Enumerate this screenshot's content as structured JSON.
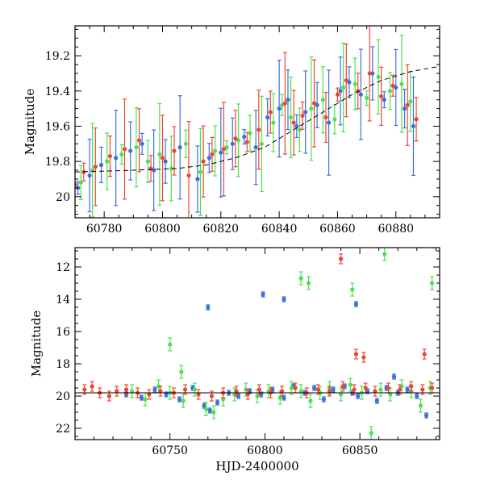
{
  "chart_data": [
    {
      "type": "scatter",
      "panel": "top",
      "title": "",
      "xlabel": "",
      "ylabel": "Magnitude",
      "xlim": [
        60770,
        60895
      ],
      "ylim": [
        20.12,
        19.03
      ],
      "y_inverted": true,
      "xticks": [
        60780,
        60800,
        60820,
        60840,
        60860,
        60880
      ],
      "xtick_labels": [
        "60780",
        "60800",
        "60820",
        "60840",
        "60860",
        "60880"
      ],
      "yticks": [
        19.2,
        19.4,
        19.6,
        19.8,
        20.0
      ],
      "ytick_labels": [
        "19.2",
        "19.4",
        "19.6",
        "19.8",
        "20"
      ],
      "grid": false,
      "legend": "none",
      "model_curve": {
        "color": "#000000",
        "style": "dashed",
        "x": [
          60770,
          60790,
          60805,
          60815,
          60825,
          60835,
          60845,
          60855,
          60865,
          60875,
          60885,
          60895
        ],
        "y": [
          19.86,
          19.85,
          19.84,
          19.82,
          19.78,
          19.72,
          19.62,
          19.52,
          19.42,
          19.34,
          19.29,
          19.26
        ]
      },
      "series": [
        {
          "color": "#3b6fe0",
          "x": [
            60771,
            60775,
            60779,
            60784,
            60789,
            60793,
            60797,
            60801,
            60806,
            60812,
            60816,
            60820,
            60824,
            60828,
            60832,
            60836,
            60840,
            60843,
            60846,
            60849,
            60853,
            60857,
            60861,
            60864,
            60868,
            60872,
            60876,
            60880,
            60883,
            60886
          ],
          "y": [
            19.95,
            19.88,
            19.82,
            19.78,
            19.74,
            19.7,
            19.85,
            19.8,
            19.72,
            19.9,
            19.78,
            19.75,
            19.7,
            19.66,
            19.72,
            19.55,
            19.5,
            19.45,
            19.6,
            19.52,
            19.48,
            19.58,
            19.4,
            19.35,
            19.42,
            19.3,
            19.45,
            19.38,
            19.5,
            19.6
          ]
        },
        {
          "color": "#4fe04f",
          "x": [
            60772,
            60776,
            60781,
            60786,
            60791,
            60795,
            60799,
            60803,
            60808,
            60813,
            60818,
            60822,
            60826,
            60830,
            60834,
            60838,
            60841,
            60844,
            60847,
            60851,
            60855,
            60859,
            60862,
            60866,
            60870,
            60874,
            60878,
            60882,
            60885
          ],
          "y": [
            19.92,
            19.85,
            19.8,
            19.76,
            19.72,
            19.8,
            19.76,
            19.84,
            19.7,
            19.86,
            19.74,
            19.72,
            19.68,
            19.64,
            19.7,
            19.58,
            19.48,
            19.55,
            19.62,
            19.5,
            19.45,
            19.56,
            19.38,
            19.36,
            19.44,
            19.32,
            19.4,
            19.36,
            19.46
          ]
        },
        {
          "color": "#f04530",
          "x": [
            60770,
            60773,
            60777,
            60782,
            60787,
            60792,
            60796,
            60800,
            60804,
            60809,
            60814,
            60817,
            60821,
            60825,
            60829,
            60833,
            60837,
            60842,
            60845,
            60848,
            60852,
            60856,
            60860,
            60863,
            60867,
            60871,
            60875,
            60879,
            60884,
            60887
          ],
          "y": [
            19.93,
            19.86,
            19.83,
            19.77,
            19.73,
            19.68,
            19.84,
            19.78,
            19.74,
            19.88,
            19.8,
            19.76,
            19.73,
            19.67,
            19.69,
            19.62,
            19.52,
            19.47,
            19.58,
            19.54,
            19.47,
            19.55,
            19.42,
            19.34,
            19.4,
            19.3,
            19.43,
            19.37,
            19.48,
            19.56
          ]
        }
      ]
    },
    {
      "type": "scatter",
      "panel": "bottom",
      "title": "",
      "xlabel": "HJD-2400000",
      "ylabel": "Magnitude",
      "xlim": [
        60700,
        60892
      ],
      "ylim": [
        22.7,
        10.8
      ],
      "y_inverted": true,
      "xticks": [
        60750,
        60800,
        60850
      ],
      "xtick_labels": [
        "60750",
        "60800",
        "60850"
      ],
      "yticks": [
        12,
        14,
        16,
        18,
        20,
        22
      ],
      "ytick_labels": [
        "12",
        "14",
        "16",
        "18",
        "20",
        "22"
      ],
      "grid": false,
      "legend": "none",
      "model_curve": {
        "color": "#000000",
        "style": "solid",
        "x": [
          60700,
          60892
        ],
        "y": [
          19.8,
          19.8
        ]
      },
      "series": [
        {
          "color": "#3b6fe0",
          "x": [
            60727,
            60735,
            60742,
            60748,
            60755,
            60762,
            60768,
            60771,
            60775,
            60781,
            60786,
            60792,
            60798,
            60804,
            60810,
            60815,
            60821,
            60826,
            60831,
            60836,
            60842,
            60846,
            60849,
            60854,
            60859,
            60864,
            60870,
            60875,
            60880,
            60885,
            60770,
            60799,
            60810,
            60848,
            60868
          ],
          "y": [
            19.9,
            20.1,
            19.6,
            19.9,
            20.2,
            19.5,
            20.6,
            20.9,
            20.4,
            19.8,
            20.0,
            19.7,
            19.9,
            19.6,
            20.1,
            19.4,
            19.8,
            19.5,
            20.2,
            19.6,
            19.4,
            19.8,
            20.0,
            19.7,
            20.3,
            19.5,
            19.8,
            19.6,
            20.0,
            21.2,
            14.5,
            13.7,
            14.0,
            14.3,
            18.8
          ]
        },
        {
          "color": "#4fe04f",
          "x": [
            60730,
            60737,
            60744,
            60750,
            60757,
            60763,
            60769,
            60773,
            60778,
            60784,
            60790,
            60796,
            60802,
            60808,
            60814,
            60819,
            60824,
            60829,
            60834,
            60840,
            60845,
            60851,
            60856,
            60861,
            60866,
            60872,
            60877,
            60882,
            60887,
            60750,
            60756,
            60819,
            60823,
            60846,
            60863,
            60888
          ],
          "y": [
            19.7,
            20.2,
            19.4,
            19.8,
            20.3,
            19.6,
            20.8,
            21.0,
            20.2,
            19.9,
            19.6,
            20.0,
            19.7,
            20.1,
            19.5,
            19.7,
            20.3,
            19.8,
            19.5,
            19.9,
            19.3,
            19.8,
            22.3,
            19.6,
            19.9,
            19.4,
            19.7,
            20.6,
            19.5,
            16.8,
            18.5,
            12.7,
            13.0,
            13.4,
            11.2,
            13.0
          ]
        },
        {
          "color": "#f04530",
          "x": [
            60705,
            60709,
            60713,
            60718,
            60722,
            60727,
            60733,
            60739,
            60745,
            60752,
            60758,
            60765,
            60772,
            60778,
            60785,
            60791,
            60797,
            60803,
            60809,
            60816,
            60822,
            60828,
            60834,
            60841,
            60847,
            60853,
            60858,
            60865,
            60871,
            60877,
            60883,
            60888,
            60840,
            60848,
            60852,
            60884
          ],
          "y": [
            19.6,
            19.4,
            19.8,
            20.0,
            19.7,
            19.6,
            19.8,
            19.9,
            19.7,
            19.8,
            19.6,
            19.9,
            20.0,
            19.8,
            19.7,
            19.9,
            19.6,
            19.8,
            19.7,
            19.5,
            19.8,
            19.6,
            19.7,
            19.4,
            19.6,
            19.5,
            19.7,
            19.5,
            19.6,
            19.4,
            19.6,
            19.5,
            11.5,
            17.4,
            17.6,
            17.4
          ]
        }
      ]
    }
  ]
}
